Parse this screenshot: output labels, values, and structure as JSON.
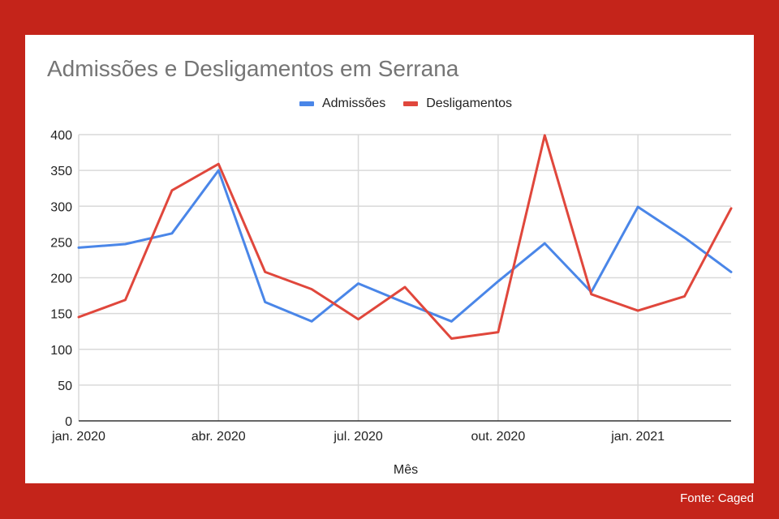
{
  "source_label": "Fonte: Caged",
  "chart_data": {
    "type": "line",
    "title": "Admissões e Desligamentos em Serrana",
    "xlabel": "Mês",
    "ylabel": "",
    "ylim": [
      0,
      400
    ],
    "yticks": [
      0,
      50,
      100,
      150,
      200,
      250,
      300,
      350,
      400
    ],
    "x": [
      "2020-01",
      "2020-02",
      "2020-03",
      "2020-04",
      "2020-05",
      "2020-06",
      "2020-07",
      "2020-08",
      "2020-09",
      "2020-10",
      "2020-11",
      "2020-12",
      "2021-01",
      "2021-02",
      "2021-03"
    ],
    "xtick_labels": [
      {
        "month": "2020-01",
        "label": "jan. 2020"
      },
      {
        "month": "2020-04",
        "label": "abr. 2020"
      },
      {
        "month": "2020-07",
        "label": "jul. 2020"
      },
      {
        "month": "2020-10",
        "label": "out. 2020"
      },
      {
        "month": "2021-01",
        "label": "jan. 2021"
      }
    ],
    "grid": true,
    "legend_position": "top-center",
    "series": [
      {
        "name": "Admissões",
        "color": "#4a86e8",
        "values": [
          242,
          247,
          262,
          350,
          166,
          139,
          192,
          165,
          139,
          195,
          248,
          180,
          299,
          256,
          208
        ]
      },
      {
        "name": "Desligamentos",
        "color": "#e0473c",
        "values": [
          145,
          169,
          322,
          359,
          208,
          184,
          142,
          187,
          115,
          124,
          399,
          177,
          154,
          174,
          297
        ]
      }
    ]
  }
}
